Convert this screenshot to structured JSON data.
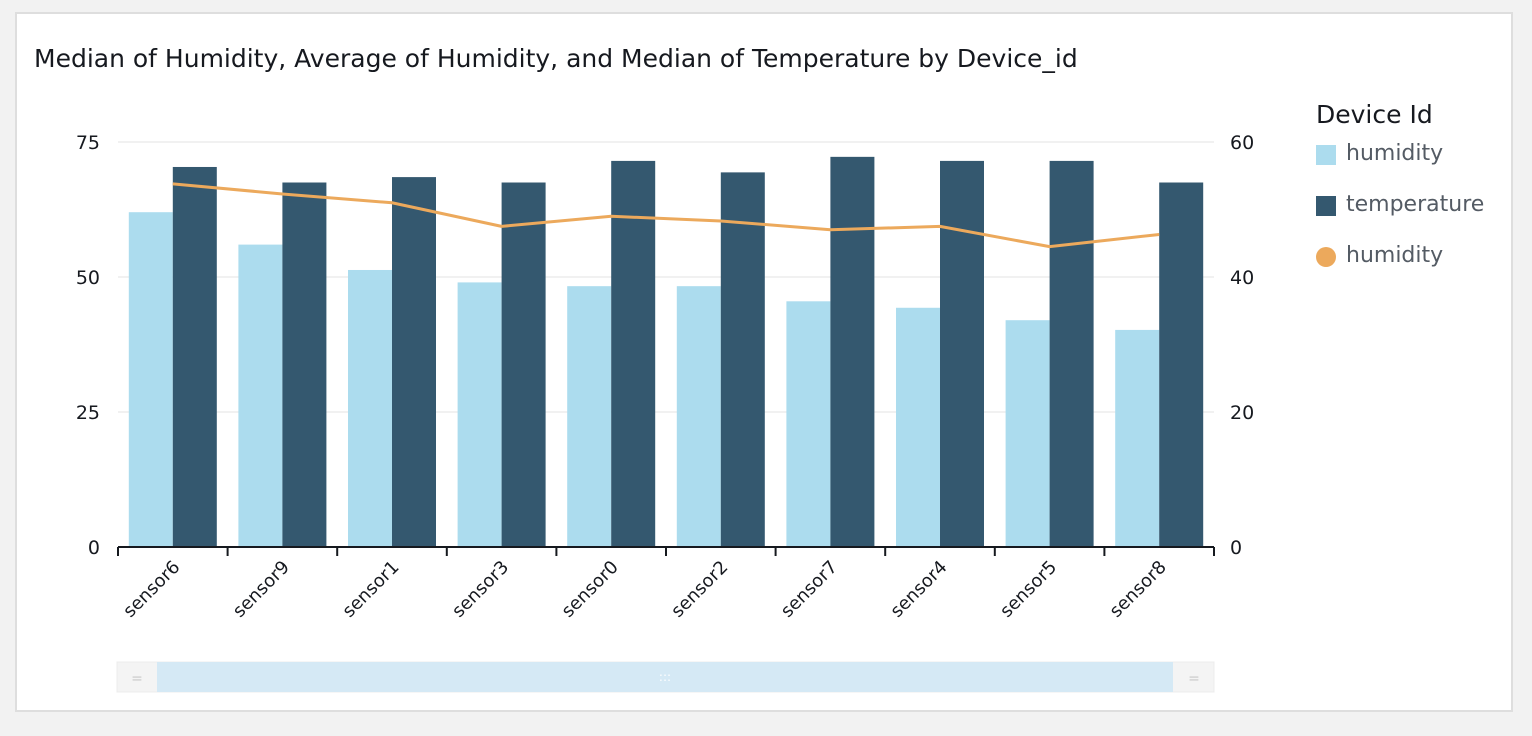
{
  "chart_data": {
    "type": "bar",
    "title": "Median of Humidity, Average of Humidity, and Median of Temperature by Device_id",
    "categories": [
      "sensor6",
      "sensor9",
      "sensor1",
      "sensor3",
      "sensor0",
      "sensor2",
      "sensor7",
      "sensor4",
      "sensor5",
      "sensor8"
    ],
    "series": [
      {
        "name": "humidity",
        "kind": "bar",
        "axis": "left",
        "color": "#acdcee",
        "values": [
          62,
          56,
          51.3,
          49,
          48.3,
          48.3,
          45.5,
          44.3,
          42,
          40.2
        ]
      },
      {
        "name": "temperature",
        "kind": "bar",
        "axis": "right",
        "color": "#34586f",
        "values": [
          56.3,
          54,
          54.8,
          54,
          57.2,
          55.5,
          57.8,
          57.2,
          57.2,
          54
        ]
      },
      {
        "name": "humidity",
        "kind": "line",
        "axis": "right",
        "color": "#eca95c",
        "values": [
          53.8,
          52.3,
          51,
          47.5,
          49,
          48.3,
          47,
          47.5,
          44.5,
          46.3
        ]
      }
    ],
    "y_left": {
      "ticks": [
        0,
        25,
        50,
        75
      ],
      "ylim": [
        0,
        75
      ]
    },
    "y_right": {
      "ticks": [
        0,
        20,
        40,
        60
      ],
      "ylim": [
        0,
        60
      ]
    },
    "grid": true,
    "legend_position": "right",
    "legend_title": "Device Id"
  },
  "legend": {
    "title": "Device Id",
    "items": [
      {
        "label": "humidity",
        "color": "#acdcee",
        "shape": "square"
      },
      {
        "label": "temperature",
        "color": "#34586f",
        "shape": "square"
      },
      {
        "label": "humidity",
        "color": "#eca95c",
        "shape": "circle"
      }
    ]
  },
  "scrollbar": {
    "left_handle_glyph": "=",
    "right_handle_glyph": "=",
    "grip_glyph": ":::"
  }
}
